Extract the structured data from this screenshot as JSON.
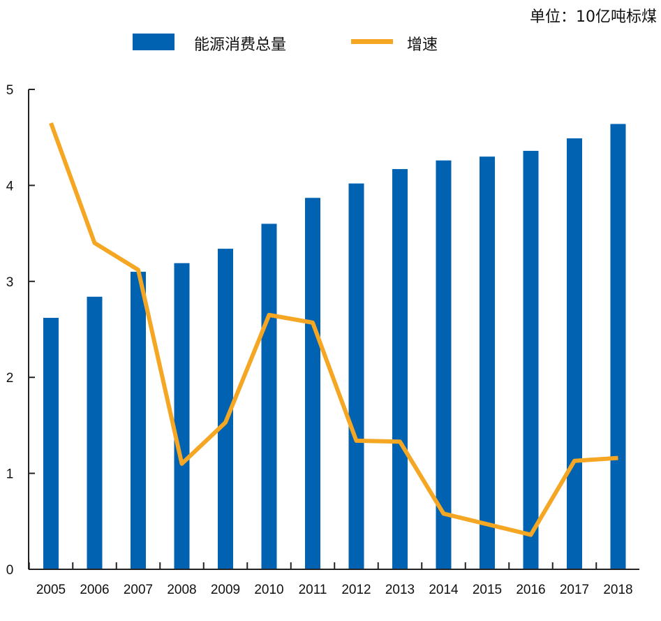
{
  "unit_label": "单位：10亿吨标煤",
  "colors": {
    "bar": "#0062b1",
    "line": "#f5a623",
    "axis": "#222222"
  },
  "chart_data": {
    "type": "bar",
    "categories": [
      "2005",
      "2006",
      "2007",
      "2008",
      "2009",
      "2010",
      "2011",
      "2012",
      "2013",
      "2014",
      "2015",
      "2016",
      "2017",
      "2018"
    ],
    "series": [
      {
        "name": "能源消费总量",
        "type": "bar",
        "values": [
          2.62,
          2.84,
          3.1,
          3.19,
          3.34,
          3.6,
          3.87,
          4.02,
          4.17,
          4.26,
          4.3,
          4.36,
          4.49,
          4.64
        ]
      },
      {
        "name": "增速",
        "type": "line",
        "values": [
          4.65,
          3.4,
          3.12,
          1.1,
          1.53,
          2.65,
          2.57,
          1.34,
          1.33,
          0.58,
          0.47,
          0.36,
          1.13,
          1.16
        ]
      }
    ],
    "y_ticks": [
      "0",
      "1",
      "2",
      "3",
      "4",
      "5"
    ],
    "ylim": [
      0,
      5
    ],
    "title": "",
    "xlabel": "",
    "ylabel": "",
    "legend": "top-center",
    "grid": false
  }
}
